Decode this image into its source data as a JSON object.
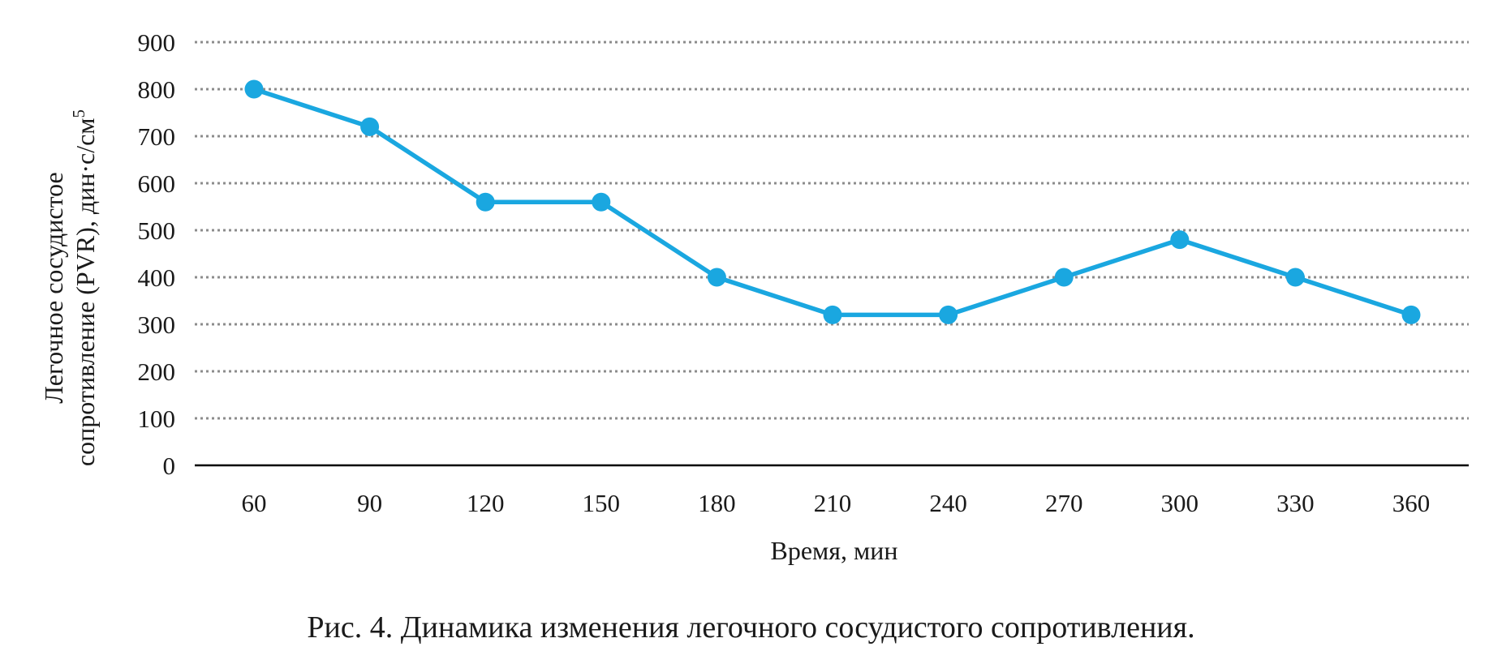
{
  "caption": "Рис. 4. Динамика изменения легочного сосудистого сопротивления.",
  "chart_data": {
    "type": "line",
    "title": "",
    "xlabel": "Время, мин",
    "ylabel_line1": "Легочное сосудистое",
    "ylabel_line2": "сопротивление (PVR), дин·с/см",
    "ylabel_superscript": "5",
    "categories": [
      "60",
      "90",
      "120",
      "150",
      "180",
      "210",
      "240",
      "270",
      "300",
      "330",
      "360"
    ],
    "series": [
      {
        "values": [
          800,
          720,
          560,
          560,
          400,
          320,
          320,
          400,
          480,
          400,
          320
        ],
        "color": "#1aa7e0"
      }
    ],
    "ylim": [
      0,
      900
    ],
    "yticks": [
      0,
      100,
      200,
      300,
      400,
      500,
      600,
      700,
      800,
      900
    ],
    "grid": "horizontal-dotted",
    "legend": "none",
    "axis_color": "#000000",
    "grid_color": "#8c8c8c"
  }
}
